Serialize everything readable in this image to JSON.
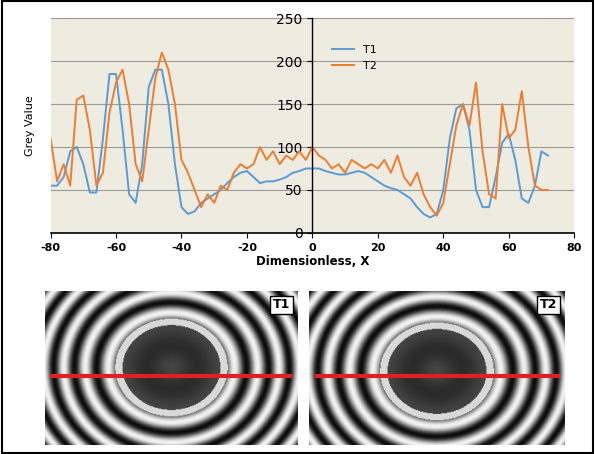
{
  "chart_data": {
    "type": "line",
    "x_label": "Dimensionless, X",
    "y_label": "Grey Value",
    "x": [
      -80,
      -78,
      -76,
      -74,
      -72,
      -70,
      -68,
      -66,
      -64,
      -62,
      -60,
      -58,
      -56,
      -54,
      -52,
      -50,
      -48,
      -46,
      -44,
      -42,
      -40,
      -38,
      -36,
      -34,
      -32,
      -30,
      -28,
      -26,
      -24,
      -22,
      -20,
      -18,
      -16,
      -14,
      -12,
      -10,
      -8,
      -6,
      -4,
      -2,
      0,
      2,
      4,
      6,
      8,
      10,
      12,
      14,
      16,
      18,
      20,
      22,
      24,
      26,
      28,
      30,
      32,
      34,
      36,
      38,
      40,
      42,
      44,
      46,
      48,
      50,
      52,
      54,
      56,
      58,
      60,
      62,
      64,
      66,
      68,
      70,
      72
    ],
    "series": [
      {
        "name": "T1",
        "color": "#5b9bd5",
        "values": [
          55,
          55,
          65,
          95,
          100,
          80,
          47,
          47,
          110,
          185,
          185,
          120,
          45,
          35,
          80,
          170,
          190,
          190,
          150,
          80,
          30,
          22,
          25,
          35,
          40,
          45,
          50,
          58,
          65,
          70,
          72,
          65,
          58,
          60,
          60,
          62,
          65,
          70,
          72,
          75,
          75,
          75,
          72,
          70,
          68,
          68,
          70,
          72,
          70,
          65,
          60,
          55,
          52,
          50,
          45,
          40,
          30,
          22,
          18,
          22,
          50,
          110,
          145,
          150,
          120,
          50,
          30,
          30,
          65,
          105,
          115,
          85,
          40,
          35,
          55,
          95,
          90
        ]
      },
      {
        "name": "T2",
        "color": "#ed7d31",
        "values": [
          110,
          60,
          80,
          55,
          155,
          160,
          120,
          55,
          70,
          140,
          175,
          190,
          150,
          80,
          60,
          120,
          180,
          210,
          190,
          150,
          85,
          70,
          50,
          30,
          45,
          35,
          55,
          50,
          70,
          80,
          75,
          80,
          100,
          85,
          95,
          80,
          90,
          85,
          95,
          85,
          100,
          90,
          85,
          75,
          80,
          70,
          85,
          80,
          75,
          80,
          75,
          85,
          70,
          90,
          65,
          55,
          70,
          45,
          30,
          20,
          35,
          80,
          125,
          150,
          125,
          175,
          95,
          45,
          40,
          150,
          110,
          120,
          165,
          100,
          55,
          50,
          50
        ]
      }
    ],
    "xlim": [
      -80,
      80
    ],
    "xticks": [
      -80,
      -60,
      -40,
      -20,
      0,
      20,
      40,
      60,
      80
    ],
    "ylim": [
      0,
      250
    ],
    "yticks": [
      0,
      50,
      100,
      150,
      200,
      250
    ],
    "grid": true,
    "legend": "upper center"
  },
  "image_panels": [
    "T1",
    "T2"
  ]
}
